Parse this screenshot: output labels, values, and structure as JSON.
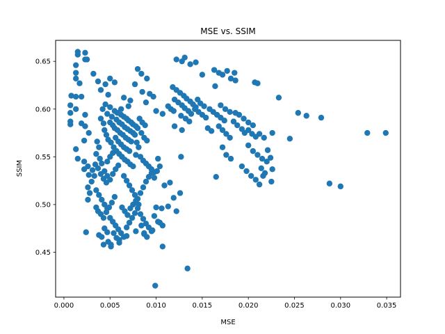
{
  "chart_data": {
    "type": "scatter",
    "title": "MSE vs. SSIM",
    "xlabel": "MSE",
    "ylabel": "SSIM",
    "xlim": [
      -0.0009,
      0.0365
    ],
    "ylim": [
      0.403,
      0.672
    ],
    "x_ticks": [
      0.0,
      0.005,
      0.01,
      0.015,
      0.02,
      0.025,
      0.03,
      0.035
    ],
    "x_tick_labels": [
      "0.000",
      "0.005",
      "0.010",
      "0.015",
      "0.020",
      "0.025",
      "0.030",
      "0.035"
    ],
    "y_ticks": [
      0.45,
      0.5,
      0.55,
      0.6,
      0.65
    ],
    "y_tick_labels": [
      "0.45",
      "0.50",
      "0.55",
      "0.60",
      "0.65"
    ],
    "grid": false,
    "marker_color": "#1f77b4",
    "points": [
      [
        0.0015,
        0.66
      ],
      [
        0.0015,
        0.657
      ],
      [
        0.0023,
        0.659
      ],
      [
        0.0023,
        0.652
      ],
      [
        0.0013,
        0.646
      ],
      [
        0.0013,
        0.638
      ],
      [
        0.0013,
        0.632
      ],
      [
        0.0017,
        0.627
      ],
      [
        0.0008,
        0.614
      ],
      [
        0.0013,
        0.613
      ],
      [
        0.0019,
        0.613
      ],
      [
        0.0007,
        0.604
      ],
      [
        0.0013,
        0.6
      ],
      [
        0.0007,
        0.596
      ],
      [
        0.0007,
        0.587
      ],
      [
        0.0007,
        0.584
      ],
      [
        0.0023,
        0.594
      ],
      [
        0.0019,
        0.585
      ],
      [
        0.0027,
        0.575
      ],
      [
        0.0023,
        0.582
      ],
      [
        0.0022,
        0.567
      ],
      [
        0.0013,
        0.558
      ],
      [
        0.0015,
        0.548
      ],
      [
        0.0022,
        0.545
      ],
      [
        0.0026,
        0.54
      ],
      [
        0.0022,
        0.537
      ],
      [
        0.0027,
        0.531
      ],
      [
        0.003,
        0.524
      ],
      [
        0.0026,
        0.518
      ],
      [
        0.0028,
        0.512
      ],
      [
        0.0026,
        0.505
      ],
      [
        0.0035,
        0.497
      ],
      [
        0.0024,
        0.471
      ],
      [
        0.0038,
        0.468
      ],
      [
        0.0043,
        0.458
      ],
      [
        0.0051,
        0.456
      ],
      [
        0.006,
        0.463
      ],
      [
        0.0068,
        0.467
      ],
      [
        0.0078,
        0.472
      ],
      [
        0.0087,
        0.469
      ],
      [
        0.0096,
        0.473
      ],
      [
        0.0104,
        0.481
      ],
      [
        0.0106,
        0.496
      ],
      [
        0.0113,
        0.498
      ],
      [
        0.0099,
        0.415
      ],
      [
        0.0134,
        0.433
      ],
      [
        0.0107,
        0.456
      ],
      [
        0.0122,
        0.493
      ],
      [
        0.0119,
        0.507
      ],
      [
        0.0126,
        0.512
      ],
      [
        0.0109,
        0.52
      ],
      [
        0.0115,
        0.523
      ],
      [
        0.0025,
        0.652
      ],
      [
        0.0032,
        0.637
      ],
      [
        0.0037,
        0.629
      ],
      [
        0.0045,
        0.626
      ],
      [
        0.005,
        0.632
      ],
      [
        0.0055,
        0.628
      ],
      [
        0.004,
        0.62
      ],
      [
        0.0048,
        0.615
      ],
      [
        0.0065,
        0.612
      ],
      [
        0.0072,
        0.609
      ],
      [
        0.0062,
        0.6
      ],
      [
        0.007,
        0.603
      ],
      [
        0.008,
        0.642
      ],
      [
        0.0084,
        0.637
      ],
      [
        0.009,
        0.632
      ],
      [
        0.0077,
        0.626
      ],
      [
        0.0085,
        0.618
      ],
      [
        0.0093,
        0.616
      ],
      [
        0.0097,
        0.613
      ],
      [
        0.0089,
        0.607
      ],
      [
        0.01,
        0.598
      ],
      [
        0.0107,
        0.595
      ],
      [
        0.0045,
        0.605
      ],
      [
        0.005,
        0.602
      ],
      [
        0.0055,
        0.598
      ],
      [
        0.0058,
        0.596
      ],
      [
        0.0062,
        0.594
      ],
      [
        0.0065,
        0.592
      ],
      [
        0.0068,
        0.59
      ],
      [
        0.007,
        0.588
      ],
      [
        0.0073,
        0.586
      ],
      [
        0.0075,
        0.584
      ],
      [
        0.0078,
        0.582
      ],
      [
        0.008,
        0.58
      ],
      [
        0.0047,
        0.595
      ],
      [
        0.0052,
        0.592
      ],
      [
        0.0057,
        0.589
      ],
      [
        0.006,
        0.586
      ],
      [
        0.0063,
        0.584
      ],
      [
        0.0066,
        0.581
      ],
      [
        0.0069,
        0.579
      ],
      [
        0.0072,
        0.577
      ],
      [
        0.0075,
        0.575
      ],
      [
        0.0077,
        0.573
      ],
      [
        0.0055,
        0.58
      ],
      [
        0.0058,
        0.578
      ],
      [
        0.0061,
        0.575
      ],
      [
        0.0064,
        0.573
      ],
      [
        0.0067,
        0.57
      ],
      [
        0.007,
        0.568
      ],
      [
        0.0073,
        0.566
      ],
      [
        0.005,
        0.586
      ],
      [
        0.0053,
        0.583
      ],
      [
        0.0056,
        0.57
      ],
      [
        0.0059,
        0.566
      ],
      [
        0.0062,
        0.563
      ],
      [
        0.0065,
        0.56
      ],
      [
        0.0068,
        0.558
      ],
      [
        0.0071,
        0.556
      ],
      [
        0.0082,
        0.59
      ],
      [
        0.0085,
        0.586
      ],
      [
        0.0088,
        0.583
      ],
      [
        0.0084,
        0.575
      ],
      [
        0.0087,
        0.57
      ],
      [
        0.009,
        0.567
      ],
      [
        0.0079,
        0.565
      ],
      [
        0.0081,
        0.56
      ],
      [
        0.0042,
        0.6
      ],
      [
        0.004,
        0.59
      ],
      [
        0.0043,
        0.585
      ],
      [
        0.0044,
        0.578
      ],
      [
        0.0046,
        0.573
      ],
      [
        0.0048,
        0.568
      ],
      [
        0.0051,
        0.565
      ],
      [
        0.0054,
        0.56
      ],
      [
        0.0057,
        0.556
      ],
      [
        0.006,
        0.553
      ],
      [
        0.0063,
        0.55
      ],
      [
        0.0066,
        0.547
      ],
      [
        0.0069,
        0.545
      ],
      [
        0.0072,
        0.542
      ],
      [
        0.0075,
        0.54
      ],
      [
        0.0078,
        0.552
      ],
      [
        0.0083,
        0.55
      ],
      [
        0.0086,
        0.546
      ],
      [
        0.0089,
        0.543
      ],
      [
        0.0092,
        0.54
      ],
      [
        0.0095,
        0.537
      ],
      [
        0.0098,
        0.534
      ],
      [
        0.0036,
        0.566
      ],
      [
        0.0038,
        0.56
      ],
      [
        0.0035,
        0.553
      ],
      [
        0.0039,
        0.548
      ],
      [
        0.0041,
        0.543
      ],
      [
        0.0037,
        0.538
      ],
      [
        0.004,
        0.532
      ],
      [
        0.0043,
        0.527
      ],
      [
        0.0046,
        0.523
      ],
      [
        0.0033,
        0.53
      ],
      [
        0.0031,
        0.536
      ],
      [
        0.0034,
        0.542
      ],
      [
        0.0044,
        0.535
      ],
      [
        0.0047,
        0.53
      ],
      [
        0.005,
        0.526
      ],
      [
        0.0053,
        0.532
      ],
      [
        0.0056,
        0.537
      ],
      [
        0.0059,
        0.541
      ],
      [
        0.0047,
        0.545
      ],
      [
        0.005,
        0.55
      ],
      [
        0.0053,
        0.554
      ],
      [
        0.0065,
        0.53
      ],
      [
        0.0068,
        0.525
      ],
      [
        0.0071,
        0.52
      ],
      [
        0.0074,
        0.515
      ],
      [
        0.0077,
        0.51
      ],
      [
        0.008,
        0.506
      ],
      [
        0.0083,
        0.512
      ],
      [
        0.0086,
        0.518
      ],
      [
        0.0089,
        0.524
      ],
      [
        0.0092,
        0.529
      ],
      [
        0.0095,
        0.533
      ],
      [
        0.0098,
        0.528
      ],
      [
        0.0101,
        0.535
      ],
      [
        0.0104,
        0.54
      ],
      [
        0.0102,
        0.548
      ],
      [
        0.0035,
        0.515
      ],
      [
        0.0038,
        0.51
      ],
      [
        0.0041,
        0.505
      ],
      [
        0.0044,
        0.5
      ],
      [
        0.0047,
        0.496
      ],
      [
        0.0037,
        0.493
      ],
      [
        0.004,
        0.49
      ],
      [
        0.0043,
        0.486
      ],
      [
        0.0046,
        0.492
      ],
      [
        0.0049,
        0.497
      ],
      [
        0.0052,
        0.502
      ],
      [
        0.0055,
        0.508
      ],
      [
        0.005,
        0.486
      ],
      [
        0.0053,
        0.482
      ],
      [
        0.0056,
        0.478
      ],
      [
        0.0059,
        0.474
      ],
      [
        0.0062,
        0.47
      ],
      [
        0.0065,
        0.466
      ],
      [
        0.0068,
        0.476
      ],
      [
        0.0071,
        0.481
      ],
      [
        0.0074,
        0.486
      ],
      [
        0.0077,
        0.491
      ],
      [
        0.008,
        0.496
      ],
      [
        0.0083,
        0.49
      ],
      [
        0.0086,
        0.485
      ],
      [
        0.0089,
        0.48
      ],
      [
        0.0092,
        0.476
      ],
      [
        0.0095,
        0.472
      ],
      [
        0.0063,
        0.497
      ],
      [
        0.0066,
        0.493
      ],
      [
        0.0069,
        0.489
      ],
      [
        0.0072,
        0.496
      ],
      [
        0.0075,
        0.5
      ],
      [
        0.0078,
        0.504
      ],
      [
        0.0081,
        0.5
      ],
      [
        0.0044,
        0.475
      ],
      [
        0.0047,
        0.471
      ],
      [
        0.0041,
        0.466
      ],
      [
        0.0054,
        0.47
      ],
      [
        0.0057,
        0.465
      ],
      [
        0.0048,
        0.461
      ],
      [
        0.0051,
        0.458
      ],
      [
        0.006,
        0.46
      ],
      [
        0.01,
        0.497
      ],
      [
        0.0098,
        0.488
      ],
      [
        0.0102,
        0.482
      ],
      [
        0.0107,
        0.478
      ],
      [
        0.0084,
        0.478
      ],
      [
        0.0087,
        0.47
      ],
      [
        0.009,
        0.466
      ],
      [
        0.0118,
        0.623
      ],
      [
        0.0122,
        0.62
      ],
      [
        0.0126,
        0.617
      ],
      [
        0.013,
        0.614
      ],
      [
        0.0133,
        0.611
      ],
      [
        0.0137,
        0.608
      ],
      [
        0.014,
        0.605
      ],
      [
        0.0143,
        0.602
      ],
      [
        0.012,
        0.61
      ],
      [
        0.0124,
        0.607
      ],
      [
        0.0128,
        0.604
      ],
      [
        0.0131,
        0.601
      ],
      [
        0.0135,
        0.598
      ],
      [
        0.0138,
        0.595
      ],
      [
        0.0142,
        0.6
      ],
      [
        0.0146,
        0.597
      ],
      [
        0.015,
        0.594
      ],
      [
        0.0154,
        0.591
      ],
      [
        0.0158,
        0.6
      ],
      [
        0.0162,
        0.597
      ],
      [
        0.0166,
        0.594
      ],
      [
        0.017,
        0.591
      ],
      [
        0.0174,
        0.588
      ],
      [
        0.0116,
        0.6
      ],
      [
        0.0119,
        0.598
      ],
      [
        0.0113,
        0.603
      ],
      [
        0.0127,
        0.593
      ],
      [
        0.0132,
        0.59
      ],
      [
        0.0136,
        0.587
      ],
      [
        0.0145,
        0.61
      ],
      [
        0.0148,
        0.606
      ],
      [
        0.0152,
        0.603
      ],
      [
        0.0156,
        0.58
      ],
      [
        0.016,
        0.577
      ],
      [
        0.0168,
        0.582
      ],
      [
        0.0172,
        0.578
      ],
      [
        0.0176,
        0.574
      ],
      [
        0.018,
        0.57
      ],
      [
        0.0128,
        0.578
      ],
      [
        0.012,
        0.582
      ],
      [
        0.0122,
        0.652
      ],
      [
        0.0128,
        0.65
      ],
      [
        0.0131,
        0.654
      ],
      [
        0.0137,
        0.647
      ],
      [
        0.0143,
        0.649
      ],
      [
        0.015,
        0.636
      ],
      [
        0.0163,
        0.641
      ],
      [
        0.0168,
        0.638
      ],
      [
        0.0172,
        0.636
      ],
      [
        0.0177,
        0.64
      ],
      [
        0.0181,
        0.632
      ],
      [
        0.0185,
        0.638
      ],
      [
        0.0164,
        0.624
      ],
      [
        0.0186,
        0.63
      ],
      [
        0.017,
        0.604
      ],
      [
        0.0175,
        0.6
      ],
      [
        0.018,
        0.597
      ],
      [
        0.0186,
        0.596
      ],
      [
        0.019,
        0.594
      ],
      [
        0.0184,
        0.587
      ],
      [
        0.0188,
        0.583
      ],
      [
        0.0193,
        0.579
      ],
      [
        0.0196,
        0.575
      ],
      [
        0.02,
        0.578
      ],
      [
        0.0204,
        0.574
      ],
      [
        0.0208,
        0.571
      ],
      [
        0.0212,
        0.574
      ],
      [
        0.0217,
        0.57
      ],
      [
        0.0195,
        0.59
      ],
      [
        0.02,
        0.586
      ],
      [
        0.0205,
        0.583
      ],
      [
        0.021,
        0.627
      ],
      [
        0.0207,
        0.628
      ],
      [
        0.0233,
        0.612
      ],
      [
        0.0226,
        0.575
      ],
      [
        0.02,
        0.562
      ],
      [
        0.0205,
        0.556
      ],
      [
        0.021,
        0.552
      ],
      [
        0.0215,
        0.548
      ],
      [
        0.022,
        0.545
      ],
      [
        0.0224,
        0.549
      ],
      [
        0.0221,
        0.557
      ],
      [
        0.0193,
        0.54
      ],
      [
        0.0198,
        0.535
      ],
      [
        0.0203,
        0.53
      ],
      [
        0.0208,
        0.526
      ],
      [
        0.0212,
        0.521
      ],
      [
        0.0216,
        0.53
      ],
      [
        0.0214,
        0.538
      ],
      [
        0.0218,
        0.533
      ],
      [
        0.0226,
        0.537
      ],
      [
        0.0225,
        0.524
      ],
      [
        0.0172,
        0.56
      ],
      [
        0.0176,
        0.552
      ],
      [
        0.0181,
        0.548
      ],
      [
        0.0165,
        0.529
      ],
      [
        0.0127,
        0.55
      ],
      [
        0.0254,
        0.596
      ],
      [
        0.0263,
        0.593
      ],
      [
        0.0279,
        0.591
      ],
      [
        0.0245,
        0.569
      ],
      [
        0.0288,
        0.522
      ],
      [
        0.03,
        0.519
      ],
      [
        0.0329,
        0.575
      ],
      [
        0.0349,
        0.575
      ]
    ]
  }
}
